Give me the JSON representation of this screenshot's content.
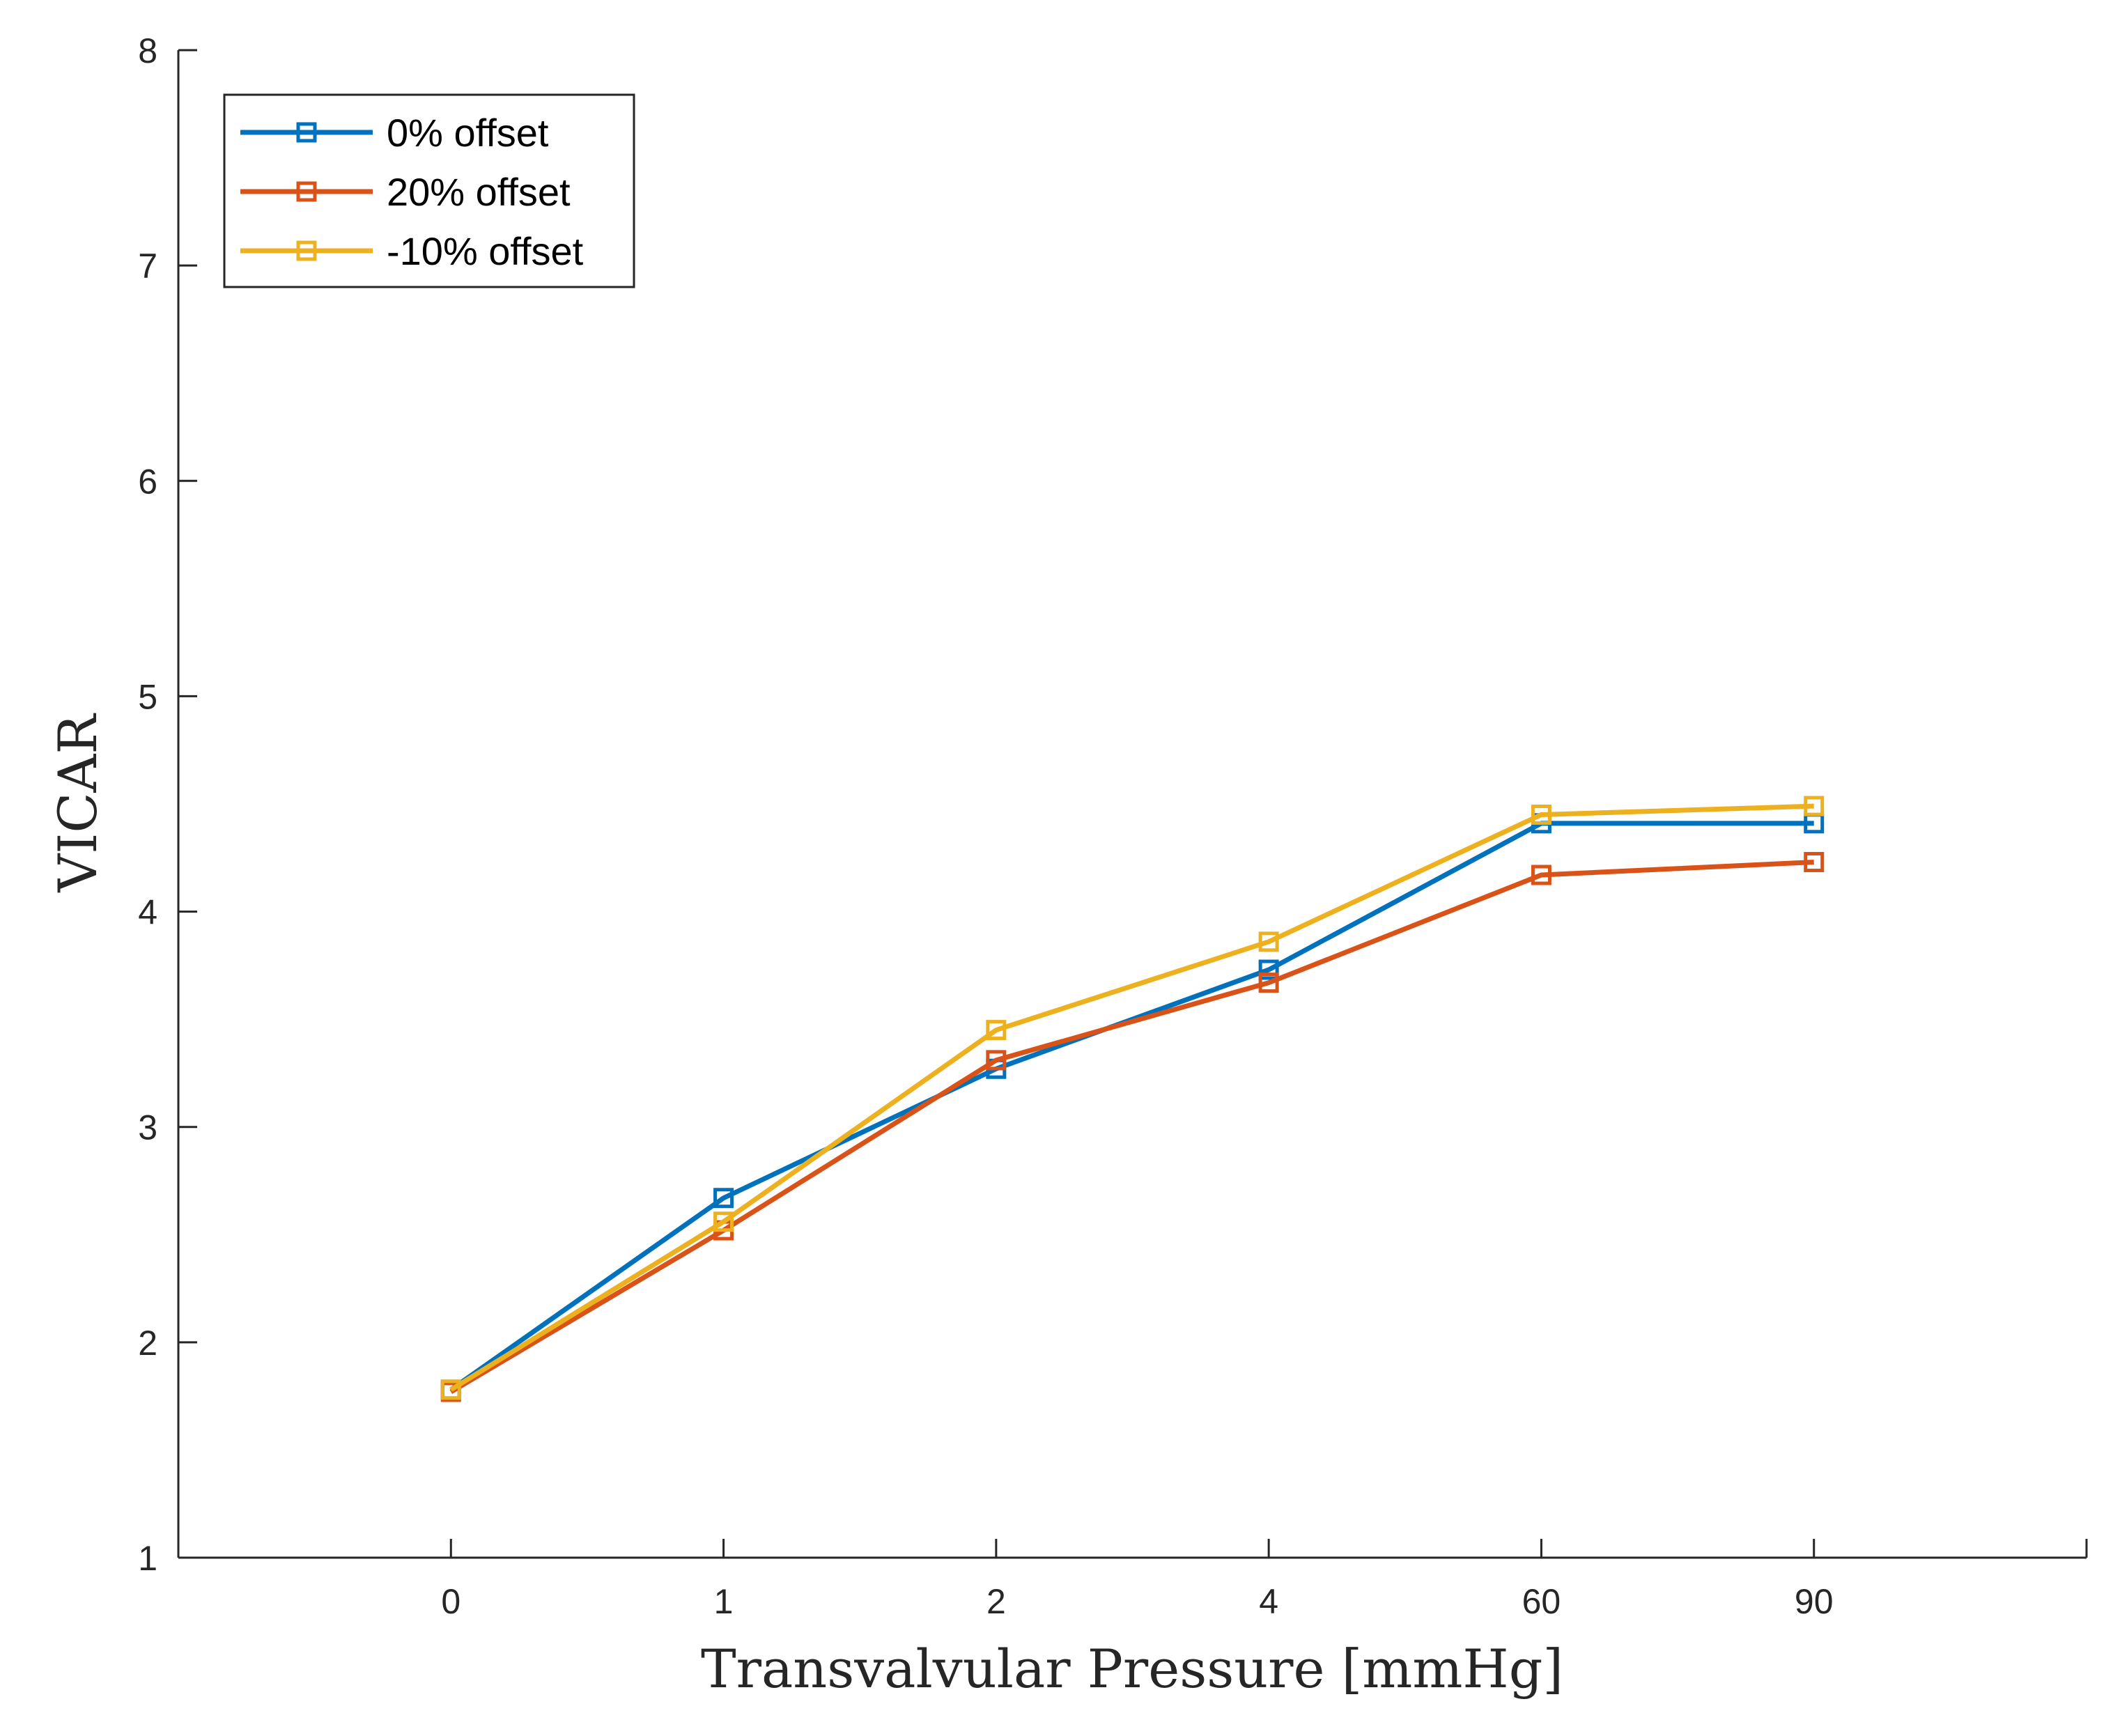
{
  "chart_data": {
    "type": "line",
    "title": "",
    "xlabel": "Transvalvular Pressure [mmHg]",
    "ylabel": "VICAR",
    "categories": [
      "0",
      "1",
      "2",
      "4",
      "60",
      "90"
    ],
    "x_range": [
      -1,
      6
    ],
    "ylim": [
      1,
      8
    ],
    "yticks": [
      "1",
      "2",
      "3",
      "4",
      "5",
      "6",
      "7",
      "8"
    ],
    "grid": false,
    "legend_position": "top-left",
    "marker": "square",
    "series": [
      {
        "name": "0% offset",
        "color": "#0072BD",
        "values": [
          1.78,
          2.67,
          3.27,
          3.73,
          4.41,
          4.41
        ]
      },
      {
        "name": "20% offset",
        "color": "#D95319",
        "values": [
          1.77,
          2.52,
          3.31,
          3.67,
          4.17,
          4.23
        ]
      },
      {
        "name": "-10% offset",
        "color": "#EDB120",
        "values": [
          1.78,
          2.56,
          3.45,
          3.86,
          4.45,
          4.49
        ]
      }
    ]
  }
}
